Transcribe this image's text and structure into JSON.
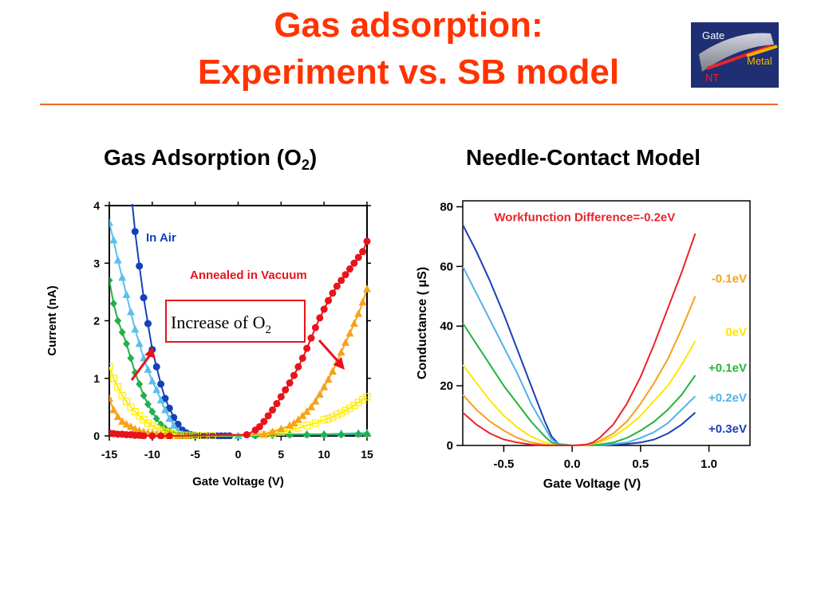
{
  "title_line1": "Gas adsorption:",
  "title_line2": "Experiment vs. SB model",
  "logo": {
    "gate_label": "Gate",
    "metal_label": "Metal",
    "nt_label": "NT"
  },
  "left_subtitle": {
    "text": "Gas Adsorption (O",
    "subscript": "2",
    "close": ")"
  },
  "right_subtitle": "Needle-Contact Model",
  "colors": {
    "title": "#ff3300",
    "rule": "#f26a2a"
  },
  "chart_data": [
    {
      "type": "scatter",
      "xlabel": "Gate Voltage (V)",
      "ylabel": "Current (nA)",
      "xlim": [
        -15,
        15
      ],
      "ylim": [
        0,
        4
      ],
      "xticks": [
        "-15",
        "-10",
        "-5",
        "0",
        "5",
        "10",
        "15"
      ],
      "yticks": [
        "0",
        "1",
        "2",
        "3",
        "4"
      ],
      "annotations": {
        "in_air": "In Air",
        "annealed": "Annealed in Vacuum",
        "box_text": "Increase of O",
        "box_sub": "2"
      },
      "series": [
        {
          "color": "#1640b8",
          "marker": "circle",
          "x": [
            -12.5,
            -12,
            -11.5,
            -11,
            -10.5,
            -10,
            -9.5,
            -9,
            -8.5,
            -8,
            -7.5,
            -7,
            -6.5,
            -6,
            -5.5,
            -5,
            -4.5,
            -4,
            -3.5,
            -3,
            -2.5,
            -2,
            -1.5,
            -1
          ],
          "y": [
            4.3,
            3.55,
            2.95,
            2.4,
            1.95,
            1.5,
            1.2,
            0.9,
            0.65,
            0.48,
            0.32,
            0.2,
            0.1,
            0.05,
            0.02,
            0.01,
            0,
            0,
            0,
            0,
            0,
            0,
            0,
            0
          ]
        },
        {
          "color": "#5bc0eb",
          "marker": "triangle",
          "x": [
            -15,
            -14.5,
            -14,
            -13.5,
            -13,
            -12.5,
            -12,
            -11.5,
            -11,
            -10.5,
            -10,
            -9.5,
            -9,
            -8.5,
            -8,
            -7.5,
            -7,
            -6.5,
            -6,
            -5.5,
            -5,
            0,
            2,
            4,
            6,
            8,
            10,
            12,
            14,
            15
          ],
          "y": [
            3.7,
            3.4,
            3.05,
            2.75,
            2.45,
            2.15,
            1.85,
            1.6,
            1.35,
            1.15,
            0.95,
            0.8,
            0.62,
            0.45,
            0.3,
            0.18,
            0.08,
            0.03,
            0.01,
            0,
            0,
            0,
            0.02,
            0.03,
            0.03,
            0.03,
            0.03,
            0.04,
            0.05,
            0.05
          ]
        },
        {
          "color": "#22b04a",
          "marker": "diamond",
          "x": [
            -15,
            -14.5,
            -14,
            -13.5,
            -13,
            -12.5,
            -12,
            -11.5,
            -11,
            -10.5,
            -10,
            -9.5,
            -9,
            -8.5,
            -8,
            -7.5,
            -7,
            -6.5,
            -6,
            -5.5,
            -5,
            2,
            4,
            6,
            8,
            10,
            12,
            14,
            15
          ],
          "y": [
            2.7,
            2.3,
            2.0,
            1.8,
            1.6,
            1.35,
            1.1,
            0.9,
            0.7,
            0.55,
            0.42,
            0.3,
            0.2,
            0.13,
            0.08,
            0.04,
            0.02,
            0,
            0,
            0,
            0,
            0,
            0.01,
            0.02,
            0.02,
            0.02,
            0.02,
            0.03,
            0.03
          ]
        },
        {
          "color": "#ffee00",
          "marker": "square",
          "x": [
            -15,
            -14.5,
            -14,
            -13.5,
            -13,
            -12.5,
            -12,
            -11.5,
            -11,
            -10.5,
            -10,
            -9.5,
            -9,
            -8.5,
            -8,
            -7.5,
            -7,
            -6,
            -5,
            -4,
            -3,
            3,
            4,
            5,
            6,
            7,
            8,
            9,
            10,
            10.5,
            11,
            11.5,
            12,
            12.5,
            13,
            13.5,
            14,
            14.5,
            15
          ],
          "y": [
            1.2,
            1.0,
            0.85,
            0.7,
            0.6,
            0.5,
            0.42,
            0.35,
            0.28,
            0.22,
            0.17,
            0.13,
            0.1,
            0.07,
            0.05,
            0.03,
            0.02,
            0.01,
            0,
            0,
            0,
            0.02,
            0.04,
            0.07,
            0.1,
            0.14,
            0.18,
            0.22,
            0.28,
            0.3,
            0.33,
            0.37,
            0.4,
            0.44,
            0.48,
            0.53,
            0.58,
            0.63,
            0.68
          ]
        },
        {
          "color": "#f7a21b",
          "marker": "triangle",
          "x": [
            -15,
            -14.5,
            -14,
            -13.5,
            -13,
            -12.5,
            -12,
            -11.5,
            -11,
            -10.5,
            -10,
            -9.5,
            -9,
            -8.5,
            -8,
            -7,
            -6,
            3,
            4,
            5,
            6,
            6.5,
            7,
            7.5,
            8,
            8.5,
            9,
            9.5,
            10,
            10.5,
            11,
            11.5,
            12,
            12.5,
            13,
            13.5,
            14,
            14.5,
            15
          ],
          "y": [
            0.65,
            0.45,
            0.33,
            0.25,
            0.2,
            0.16,
            0.12,
            0.09,
            0.07,
            0.05,
            0.04,
            0.03,
            0.02,
            0.01,
            0,
            0,
            0,
            0.03,
            0.07,
            0.12,
            0.18,
            0.22,
            0.28,
            0.35,
            0.42,
            0.5,
            0.6,
            0.72,
            0.85,
            0.98,
            1.12,
            1.28,
            1.45,
            1.62,
            1.78,
            1.95,
            2.12,
            2.32,
            2.55
          ]
        },
        {
          "color": "#e8131b",
          "marker": "circle",
          "x": [
            -15,
            -14.5,
            -14,
            -13.5,
            -13,
            -12.5,
            -12,
            -11.5,
            -11,
            -10,
            -9,
            -8,
            1,
            2,
            2.5,
            3,
            3.5,
            4,
            4.5,
            5,
            5.5,
            6,
            6.5,
            7,
            7.5,
            8,
            8.5,
            9,
            9.5,
            10,
            10.5,
            11,
            11.5,
            12,
            12.5,
            13,
            13.5,
            14,
            14.5,
            15
          ],
          "y": [
            0.05,
            0.04,
            0.03,
            0.03,
            0.02,
            0.02,
            0.01,
            0.01,
            0,
            0,
            0,
            0,
            0.02,
            0.1,
            0.16,
            0.25,
            0.35,
            0.45,
            0.56,
            0.68,
            0.8,
            0.92,
            1.05,
            1.2,
            1.35,
            1.52,
            1.7,
            1.88,
            2.05,
            2.2,
            2.35,
            2.48,
            2.6,
            2.7,
            2.8,
            2.9,
            3.0,
            3.1,
            3.2,
            3.38
          ]
        }
      ]
    },
    {
      "type": "line",
      "xlabel": "Gate Voltage (V)",
      "ylabel": "Conductance ( μS)",
      "xlim": [
        -0.8,
        1.3
      ],
      "ylim": [
        0,
        82
      ],
      "xticks": [
        "-0.5",
        "0.0",
        "0.5",
        "1.0"
      ],
      "yticks": [
        "0",
        "20",
        "40",
        "60",
        "80"
      ],
      "annotation": "Workfunction Difference=-0.2eV",
      "series": [
        {
          "name": "+0.3eV",
          "color": "#1c3fb5",
          "x": [
            -0.8,
            -0.7,
            -0.6,
            -0.5,
            -0.4,
            -0.3,
            -0.2,
            -0.15,
            -0.1,
            0,
            0.1,
            0.2,
            0.3,
            0.4,
            0.5,
            0.6,
            0.7,
            0.8,
            0.9
          ],
          "y": [
            74,
            65,
            55,
            44,
            32,
            20,
            8,
            3,
            0.5,
            0,
            0,
            0,
            0.3,
            0.5,
            1,
            2,
            4,
            7,
            11
          ]
        },
        {
          "name": "+0.2eV",
          "color": "#4fb3ea",
          "x": [
            -0.8,
            -0.7,
            -0.6,
            -0.5,
            -0.4,
            -0.3,
            -0.2,
            -0.15,
            -0.1,
            0,
            0.1,
            0.2,
            0.3,
            0.4,
            0.5,
            0.6,
            0.7,
            0.8,
            0.9
          ],
          "y": [
            60,
            51,
            42,
            33,
            24,
            14,
            6,
            2,
            0.5,
            0,
            0,
            0,
            0.5,
            1,
            2.5,
            4.5,
            7.5,
            12,
            16.5
          ]
        },
        {
          "name": "+0.1eV",
          "color": "#23b43a",
          "x": [
            -0.8,
            -0.7,
            -0.6,
            -0.5,
            -0.4,
            -0.3,
            -0.2,
            -0.15,
            -0.1,
            0,
            0.1,
            0.2,
            0.3,
            0.4,
            0.5,
            0.6,
            0.7,
            0.8,
            0.9
          ],
          "y": [
            41,
            34,
            27,
            20,
            14,
            8,
            3,
            1,
            0.3,
            0,
            0,
            0.3,
            1,
            2.5,
            5,
            8,
            12,
            17,
            23.5
          ]
        },
        {
          "name": "0eV",
          "color": "#ffe600",
          "x": [
            -0.8,
            -0.7,
            -0.6,
            -0.5,
            -0.4,
            -0.3,
            -0.2,
            -0.15,
            -0.1,
            0,
            0.1,
            0.15,
            0.2,
            0.3,
            0.4,
            0.5,
            0.6,
            0.7,
            0.8,
            0.9
          ],
          "y": [
            27,
            21,
            15,
            10,
            6,
            3,
            1,
            0.3,
            0,
            0,
            0,
            0.5,
            1,
            3,
            6,
            10,
            15,
            20,
            27,
            35
          ]
        },
        {
          "name": "-0.1eV",
          "color": "#f7a11a",
          "x": [
            -0.8,
            -0.7,
            -0.6,
            -0.5,
            -0.4,
            -0.3,
            -0.2,
            -0.1,
            0,
            0.1,
            0.15,
            0.2,
            0.3,
            0.4,
            0.5,
            0.6,
            0.7,
            0.8,
            0.9
          ],
          "y": [
            17,
            12,
            8,
            5,
            2.5,
            1,
            0.3,
            0,
            0,
            0,
            0.5,
            1.5,
            4,
            8,
            14,
            21,
            29,
            39,
            50
          ]
        },
        {
          "name": "Workfunction Difference=-0.2eV",
          "color": "#e8232b",
          "x": [
            -0.8,
            -0.7,
            -0.6,
            -0.5,
            -0.4,
            -0.3,
            -0.2,
            -0.1,
            0,
            0.1,
            0.15,
            0.2,
            0.3,
            0.4,
            0.5,
            0.6,
            0.7,
            0.8,
            0.9
          ],
          "y": [
            11,
            7,
            4,
            2,
            1,
            0.3,
            0,
            0,
            0,
            0.3,
            1,
            2.5,
            7,
            14,
            23,
            34,
            46,
            58,
            71
          ]
        }
      ]
    }
  ]
}
